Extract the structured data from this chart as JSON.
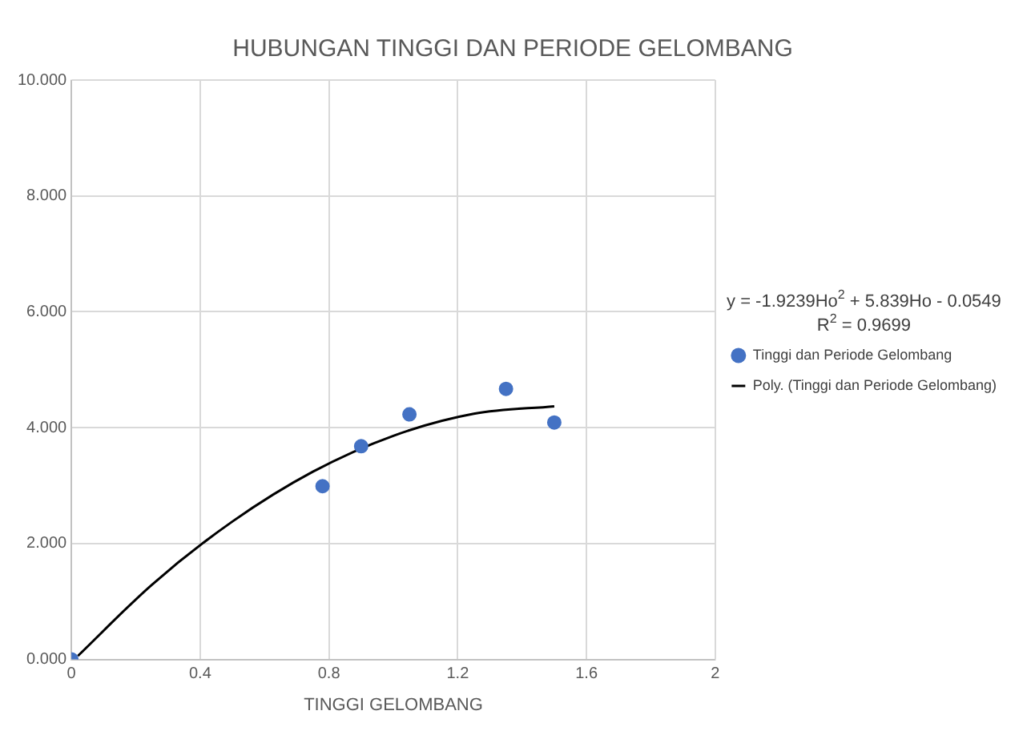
{
  "chart_data": {
    "type": "scatter",
    "title": "HUBUNGAN TINGGI DAN PERIODE GELOMBANG",
    "xlabel": "TINGGI GELOMBANG",
    "annotations": [
      "y = -1.9239Ho$^{2}$ + 5.839Ho - 0.0549",
      "R$^{2}$ = 0.9699"
    ],
    "series": [
      {
        "name": "Tinggi dan Periode Gelombang",
        "type": "scatter",
        "color": "#4472c4",
        "x": [
          0,
          0.78,
          0.9,
          1.05,
          1.35,
          1.5
        ],
        "values": [
          0,
          2.99,
          3.68,
          4.23,
          4.67,
          4.09
        ],
        "marker": "circle"
      },
      {
        "name": "Poly. (Tinggi dan Periode Gelombang)",
        "type": "line",
        "color": "#000000",
        "x": [
          0.02,
          0.25,
          0.5,
          0.75,
          1.0,
          1.25,
          1.5
        ],
        "values": [
          0.06,
          1.29,
          2.38,
          3.24,
          3.86,
          4.24,
          4.37
        ],
        "marker": "none",
        "line_style": "solid"
      }
    ],
    "xlim": [
      0,
      2
    ],
    "xticks": [
      0,
      0.4,
      0.8,
      1.2,
      1.6,
      2
    ],
    "ylim": [
      0,
      10
    ],
    "yticks": [
      {
        "value": 0,
        "label": "0.000"
      },
      {
        "value": 2,
        "label": "2.000"
      },
      {
        "value": 4,
        "label": "4.000"
      },
      {
        "value": 6,
        "label": "6.000"
      },
      {
        "value": 8,
        "label": "8.000"
      },
      {
        "value": 10,
        "label": "10.000"
      }
    ],
    "grid": true,
    "legend": "right"
  }
}
